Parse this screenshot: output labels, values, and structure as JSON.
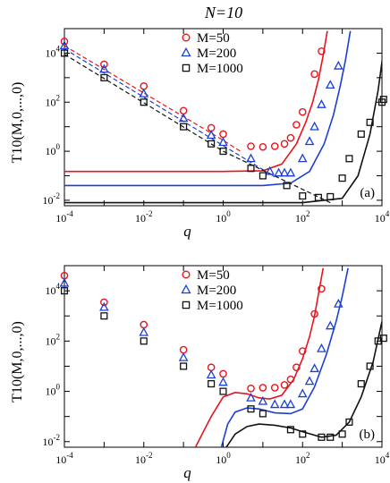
{
  "figure_title": "N=10",
  "chart_data": [
    {
      "type": "scatter",
      "panel_label": "(a)",
      "xlabel": "q",
      "ylabel": "T10(M,0,...,0)",
      "xscale": "log",
      "yscale": "log",
      "xlim": [
        0.0001,
        10000
      ],
      "ylim": [
        0.006,
        100000
      ],
      "x_ticks": [
        {
          "v": 0.0001,
          "b": "10",
          "e": "-4"
        },
        {
          "v": 0.01,
          "b": "10",
          "e": "-2"
        },
        {
          "v": 1,
          "b": "10",
          "e": "0"
        },
        {
          "v": 100,
          "b": "10",
          "e": "2"
        },
        {
          "v": 10000,
          "b": "10",
          "e": "4"
        }
      ],
      "y_ticks": [
        {
          "v": 0.01,
          "b": "10",
          "e": "-2"
        },
        {
          "v": 1,
          "b": "10",
          "e": "0"
        },
        {
          "v": 100,
          "b": "10",
          "e": "2"
        },
        {
          "v": 10000,
          "b": "10",
          "e": "4"
        }
      ],
      "legend_position": "top-center",
      "series": [
        {
          "name": "M=50",
          "marker": "circle",
          "color": "#e8141c",
          "points": [
            [
              0.0001,
              30000
            ],
            [
              0.001,
              3500
            ],
            [
              0.01,
              450
            ],
            [
              0.1,
              45
            ],
            [
              0.5,
              9
            ],
            [
              1,
              5
            ],
            [
              5,
              1.6
            ],
            [
              10,
              1.5
            ],
            [
              20,
              1.6
            ],
            [
              35,
              2
            ],
            [
              50,
              3.5
            ],
            [
              70,
              12
            ],
            [
              100,
              40
            ],
            [
              200,
              1400
            ],
            [
              300,
              12000
            ]
          ],
          "curve": [
            [
              0.0001,
              0.15
            ],
            [
              1,
              0.15
            ],
            [
              10,
              0.16
            ],
            [
              30,
              0.3
            ],
            [
              70,
              2
            ],
            [
              120,
              15
            ],
            [
              180,
              100
            ],
            [
              250,
              800
            ],
            [
              330,
              8000
            ],
            [
              420,
              80000
            ]
          ],
          "asymptote": [
            [
              0.0001,
              20000
            ],
            [
              1,
              2.8
            ],
            [
              3,
              0.9
            ]
          ]
        },
        {
          "name": "M=200",
          "marker": "triangle",
          "color": "#1a3fd6",
          "points": [
            [
              0.0001,
              20000
            ],
            [
              0.001,
              2200
            ],
            [
              0.01,
              220
            ],
            [
              0.1,
              22
            ],
            [
              0.5,
              4.5
            ],
            [
              1,
              2.3
            ],
            [
              5,
              0.5
            ],
            [
              15,
              0.15
            ],
            [
              25,
              0.13
            ],
            [
              35,
              0.13
            ],
            [
              50,
              0.13
            ],
            [
              100,
              0.5
            ],
            [
              150,
              2.5
            ],
            [
              200,
              10
            ],
            [
              300,
              80
            ],
            [
              500,
              500
            ],
            [
              800,
              3000
            ]
          ],
          "curve": [
            [
              0.0001,
              0.04
            ],
            [
              10,
              0.04
            ],
            [
              50,
              0.05
            ],
            [
              150,
              0.15
            ],
            [
              350,
              2
            ],
            [
              600,
              30
            ],
            [
              900,
              500
            ],
            [
              1200,
              5000
            ],
            [
              1600,
              80000
            ]
          ],
          "asymptote": [
            [
              0.0001,
              15000
            ],
            [
              1,
              1.7
            ],
            [
              20,
              0.09
            ]
          ]
        },
        {
          "name": "M=1000",
          "marker": "square",
          "color": "#111111",
          "points": [
            [
              0.0001,
              10000
            ],
            [
              0.001,
              1000
            ],
            [
              0.01,
              100
            ],
            [
              0.1,
              10
            ],
            [
              0.5,
              2
            ],
            [
              1,
              1
            ],
            [
              5,
              0.2
            ],
            [
              10,
              0.1
            ],
            [
              40,
              0.04
            ],
            [
              100,
              0.015
            ],
            [
              250,
              0.013
            ],
            [
              500,
              0.014
            ],
            [
              1000,
              0.08
            ],
            [
              1500,
              0.5
            ],
            [
              3000,
              5
            ],
            [
              5000,
              15
            ],
            [
              10000,
              100
            ],
            [
              11000,
              130
            ]
          ],
          "curve": [
            [
              0.0001,
              0.008
            ],
            [
              100,
              0.008
            ],
            [
              1000,
              0.012
            ],
            [
              2500,
              0.1
            ],
            [
              5000,
              5
            ],
            [
              8000,
              300
            ],
            [
              10500,
              8000
            ],
            [
              12000,
              40000
            ]
          ],
          "asymptote": [
            [
              0.0001,
              9000
            ],
            [
              1,
              1
            ],
            [
              500,
              0.008
            ]
          ]
        }
      ]
    },
    {
      "type": "scatter",
      "panel_label": "(b)",
      "xlabel": "q",
      "ylabel": "T10(M,0,...,0)",
      "xscale": "log",
      "yscale": "log",
      "xlim": [
        0.0001,
        10000
      ],
      "ylim": [
        0.006,
        100000
      ],
      "x_ticks": [
        {
          "v": 0.0001,
          "b": "10",
          "e": "-4"
        },
        {
          "v": 0.01,
          "b": "10",
          "e": "-2"
        },
        {
          "v": 1,
          "b": "10",
          "e": "0"
        },
        {
          "v": 100,
          "b": "10",
          "e": "2"
        },
        {
          "v": 10000,
          "b": "10",
          "e": "4"
        }
      ],
      "y_ticks": [
        {
          "v": 0.01,
          "b": "10",
          "e": "-2"
        },
        {
          "v": 1,
          "b": "10",
          "e": "0"
        },
        {
          "v": 100,
          "b": "10",
          "e": "2"
        },
        {
          "v": 10000,
          "b": "10",
          "e": "4"
        }
      ],
      "legend_position": "top-center",
      "series": [
        {
          "name": "M=50",
          "marker": "circle",
          "color": "#e8141c",
          "points": [
            [
              0.0001,
              40000
            ],
            [
              0.001,
              3500
            ],
            [
              0.01,
              450
            ],
            [
              0.1,
              45
            ],
            [
              0.5,
              9
            ],
            [
              1,
              5
            ],
            [
              5,
              1.3
            ],
            [
              10,
              1.4
            ],
            [
              20,
              1.4
            ],
            [
              35,
              1.8
            ],
            [
              50,
              3
            ],
            [
              70,
              9
            ],
            [
              100,
              40
            ],
            [
              200,
              1200
            ],
            [
              300,
              12000
            ]
          ],
          "curve": [
            [
              0.2,
              0.006
            ],
            [
              0.5,
              0.1
            ],
            [
              1,
              0.6
            ],
            [
              2,
              0.9
            ],
            [
              4,
              0.8
            ],
            [
              8,
              0.55
            ],
            [
              15,
              0.5
            ],
            [
              30,
              0.7
            ],
            [
              60,
              3
            ],
            [
              100,
              20
            ],
            [
              150,
              150
            ],
            [
              200,
              1000
            ],
            [
              260,
              10000
            ],
            [
              330,
              80000
            ]
          ],
          "asymptote": []
        },
        {
          "name": "M=200",
          "marker": "triangle",
          "color": "#1a3fd6",
          "points": [
            [
              0.0001,
              20000
            ],
            [
              0.001,
              2200
            ],
            [
              0.01,
              220
            ],
            [
              0.1,
              22
            ],
            [
              0.5,
              4.5
            ],
            [
              1,
              2.3
            ],
            [
              5,
              0.55
            ],
            [
              10,
              0.4
            ],
            [
              20,
              0.3
            ],
            [
              35,
              0.3
            ],
            [
              50,
              0.3
            ],
            [
              100,
              0.8
            ],
            [
              150,
              2.5
            ],
            [
              200,
              8
            ],
            [
              300,
              50
            ],
            [
              500,
              400
            ],
            [
              800,
              3000
            ]
          ],
          "curve": [
            [
              0.9,
              0.006
            ],
            [
              1.3,
              0.05
            ],
            [
              2,
              0.15
            ],
            [
              4,
              0.22
            ],
            [
              8,
              0.2
            ],
            [
              20,
              0.14
            ],
            [
              50,
              0.13
            ],
            [
              100,
              0.2
            ],
            [
              200,
              1.5
            ],
            [
              400,
              30
            ],
            [
              700,
              600
            ],
            [
              1000,
              6000
            ],
            [
              1400,
              80000
            ]
          ],
          "asymptote": []
        },
        {
          "name": "M=1000",
          "marker": "square",
          "color": "#111111",
          "points": [
            [
              0.0001,
              10000
            ],
            [
              0.001,
              1000
            ],
            [
              0.01,
              100
            ],
            [
              0.1,
              10
            ],
            [
              0.5,
              2
            ],
            [
              1,
              1
            ],
            [
              5,
              0.2
            ],
            [
              10,
              0.13
            ],
            [
              50,
              0.03
            ],
            [
              100,
              0.02
            ],
            [
              300,
              0.015
            ],
            [
              500,
              0.015
            ],
            [
              1000,
              0.02
            ],
            [
              1500,
              0.06
            ],
            [
              3000,
              2
            ],
            [
              5000,
              10
            ],
            [
              8000,
              100
            ],
            [
              11000,
              130
            ]
          ],
          "curve": [
            [
              1.2,
              0.006
            ],
            [
              2,
              0.02
            ],
            [
              4,
              0.04
            ],
            [
              8,
              0.05
            ],
            [
              20,
              0.045
            ],
            [
              50,
              0.035
            ],
            [
              100,
              0.025
            ],
            [
              300,
              0.015
            ],
            [
              700,
              0.018
            ],
            [
              1500,
              0.06
            ],
            [
              3000,
              0.6
            ],
            [
              6000,
              15
            ],
            [
              10000,
              600
            ]
          ],
          "asymptote": []
        }
      ]
    }
  ]
}
